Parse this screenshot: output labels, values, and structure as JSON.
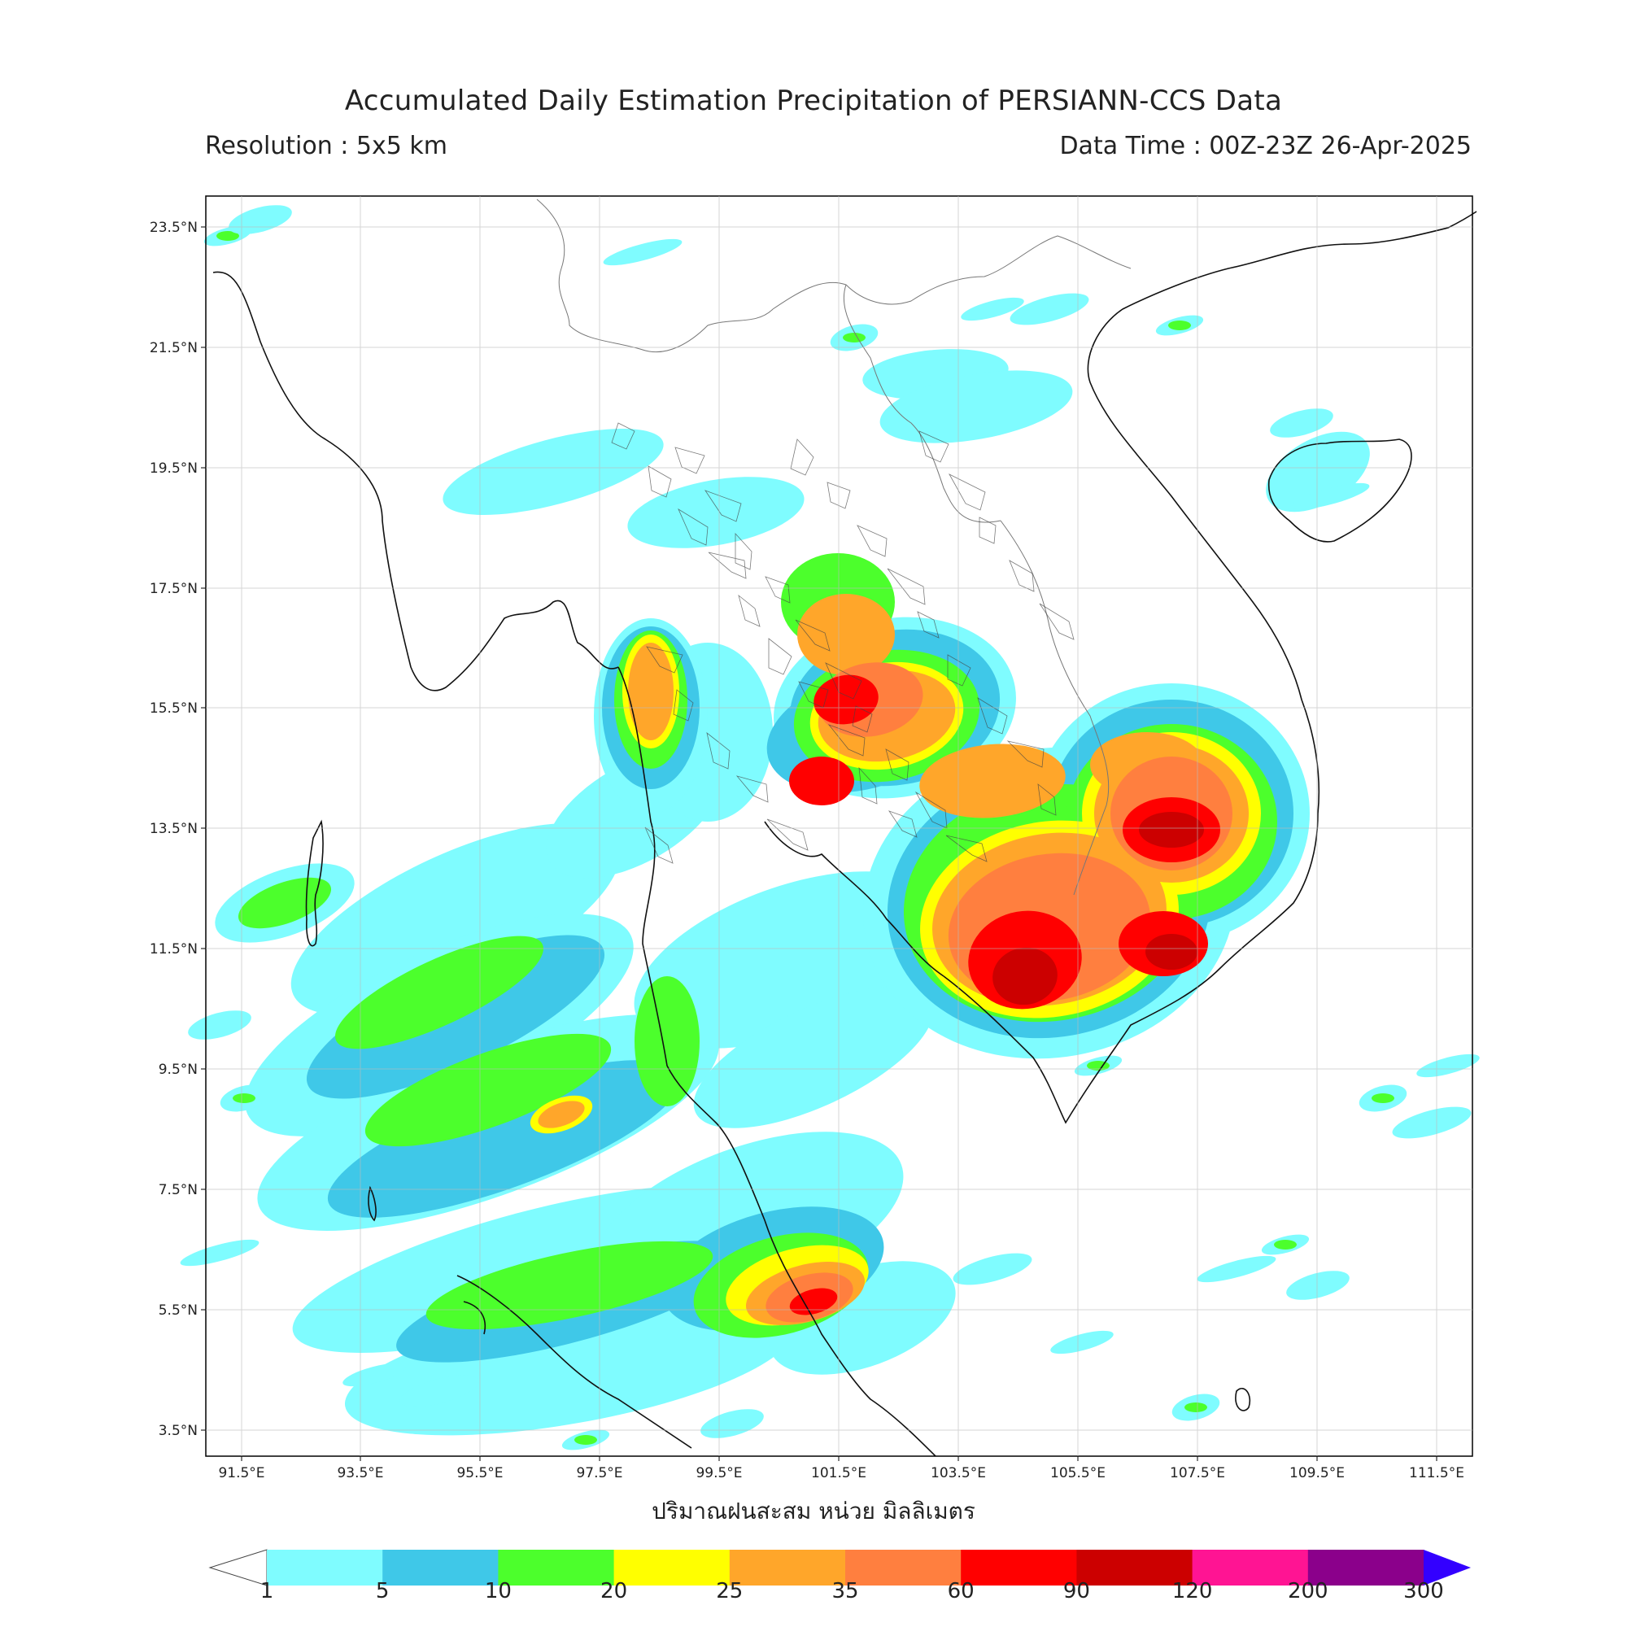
{
  "title": "Accumulated Daily Estimation Precipitation of PERSIANN-CCS Data",
  "resolution": "Resolution : 5x5 km",
  "data_time": "Data Time : 00Z-23Z 26-Apr-2025",
  "unit_label": "ปริมาณฝนสะสม หน่วย มิลลิเมตร",
  "lat_ticks": [
    "23.5°N",
    "21.5°N",
    "19.5°N",
    "17.5°N",
    "15.5°N",
    "13.5°N",
    "11.5°N",
    "9.5°N",
    "7.5°N",
    "5.5°N",
    "3.5°N"
  ],
  "lon_ticks": [
    "91.5°E",
    "93.5°E",
    "95.5°E",
    "97.5°E",
    "99.5°E",
    "101.5°E",
    "103.5°E",
    "105.5°E",
    "107.5°E",
    "109.5°E",
    "111.5°E"
  ],
  "colorbar": {
    "labels": [
      "1",
      "5",
      "10",
      "20",
      "25",
      "35",
      "60",
      "90",
      "120",
      "200",
      "300"
    ],
    "colors": [
      "#7ffcff",
      "#3fc8e8",
      "#4cff2c",
      "#ffff00",
      "#ffa62a",
      "#ff7f3f",
      "#ff0000",
      "#cc0000",
      "#ff1493",
      "#8b008b"
    ],
    "over_color": "#3300ff"
  },
  "colors": {
    "light_cyan": "#7ffcff",
    "cyan": "#3fc8e8",
    "green": "#4cff2c",
    "yellow": "#ffff00",
    "orange": "#ffa62a",
    "dark_orange": "#ff7f3f",
    "red": "#ff0000",
    "dark_red": "#cc0000"
  }
}
